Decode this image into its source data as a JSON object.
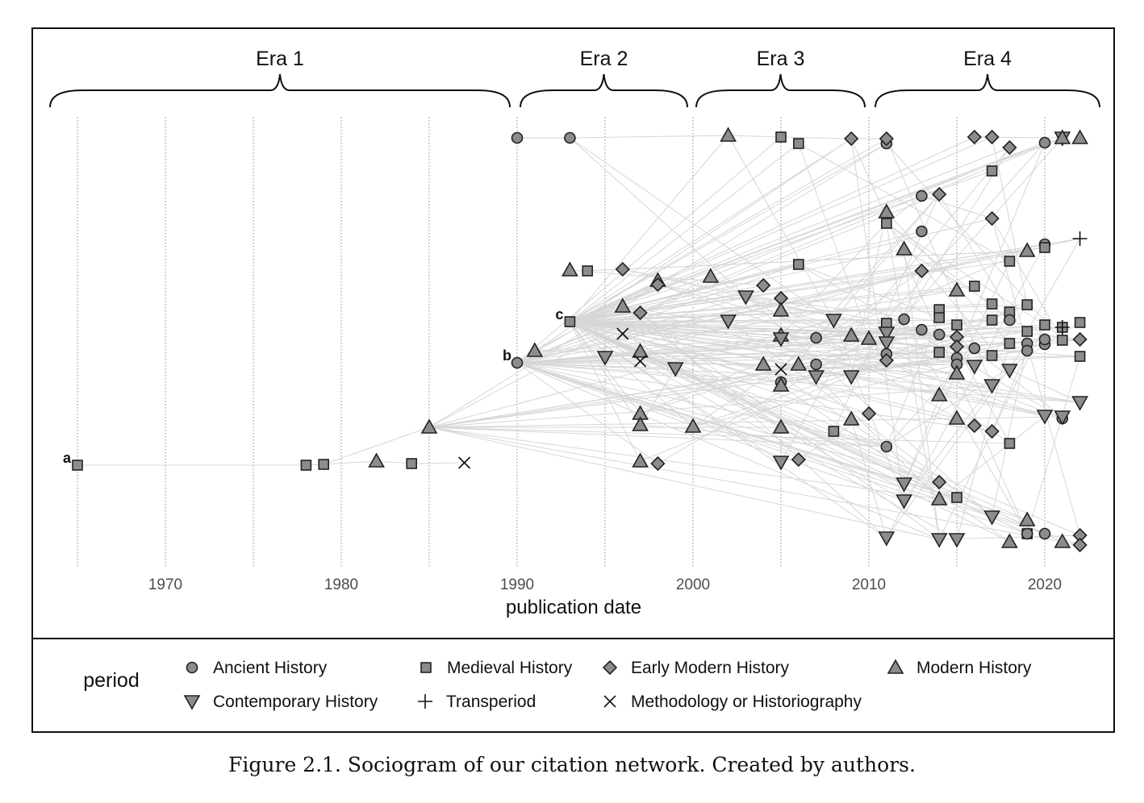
{
  "chart_data": {
    "type": "scatter",
    "subtype": "sociogram",
    "xlabel": "publication date",
    "xlim": [
      1963.5,
      2023.5
    ],
    "xticks": [
      1970,
      1980,
      1990,
      2000,
      2010,
      2020
    ],
    "eras": [
      {
        "label": "Era 1",
        "from": 1965,
        "to": 1990
      },
      {
        "label": "Era 2",
        "from": 1990,
        "to": 2000
      },
      {
        "label": "Era 3",
        "from": 2000,
        "to": 2010
      },
      {
        "label": "Era 4",
        "from": 2010,
        "to": 2022
      }
    ],
    "legend_title": "period",
    "legend_position": "bottom",
    "periods": [
      {
        "code": "A",
        "label": "Ancient History",
        "marker": "circle"
      },
      {
        "code": "M",
        "label": "Medieval History",
        "marker": "square"
      },
      {
        "code": "E",
        "label": "Early Modern History",
        "marker": "diamond"
      },
      {
        "code": "Mo",
        "label": "Modern History",
        "marker": "triangle-up"
      },
      {
        "code": "C",
        "label": "Contemporary History",
        "marker": "triangle-down"
      },
      {
        "code": "T",
        "label": "Transperiod",
        "marker": "plus"
      },
      {
        "code": "H",
        "label": "Methodology or Historiography",
        "marker": "x"
      }
    ],
    "node_labels": {
      "0": "a",
      "9": "b",
      "10": "c"
    },
    "nodes": [
      [
        1965,
        "M"
      ],
      [
        1978,
        "M"
      ],
      [
        1979,
        "M"
      ],
      [
        1982,
        "Mo"
      ],
      [
        1984,
        "M"
      ],
      [
        1985,
        "Mo"
      ],
      [
        1987,
        "H"
      ],
      [
        1990,
        "A"
      ],
      [
        1993,
        "A"
      ],
      [
        1990,
        "A"
      ],
      [
        1993,
        "M"
      ],
      [
        1991,
        "Mo"
      ],
      [
        1993,
        "Mo"
      ],
      [
        1994,
        "M"
      ],
      [
        1995,
        "C"
      ],
      [
        1996,
        "E"
      ],
      [
        1996,
        "H"
      ],
      [
        1996,
        "Mo"
      ],
      [
        1997,
        "E"
      ],
      [
        1998,
        "Mo"
      ],
      [
        1998,
        "E"
      ],
      [
        1997,
        "Mo"
      ],
      [
        1997,
        "H"
      ],
      [
        1999,
        "C"
      ],
      [
        1997,
        "Mo"
      ],
      [
        1997,
        "Mo"
      ],
      [
        2000,
        "Mo"
      ],
      [
        1997,
        "Mo"
      ],
      [
        1998,
        "E"
      ],
      [
        2002,
        "Mo"
      ],
      [
        2005,
        "M"
      ],
      [
        2006,
        "M"
      ],
      [
        2009,
        "E"
      ],
      [
        2001,
        "Mo"
      ],
      [
        2003,
        "C"
      ],
      [
        2002,
        "C"
      ],
      [
        2004,
        "E"
      ],
      [
        2005,
        "E"
      ],
      [
        2005,
        "Mo"
      ],
      [
        2005,
        "Mo"
      ],
      [
        2005,
        "C"
      ],
      [
        2006,
        "M"
      ],
      [
        2007,
        "A"
      ],
      [
        2004,
        "Mo"
      ],
      [
        2005,
        "H"
      ],
      [
        2006,
        "Mo"
      ],
      [
        2007,
        "A"
      ],
      [
        2007,
        "C"
      ],
      [
        2005,
        "A"
      ],
      [
        2005,
        "Mo"
      ],
      [
        2005,
        "Mo"
      ],
      [
        2005,
        "C"
      ],
      [
        2006,
        "E"
      ],
      [
        2008,
        "C"
      ],
      [
        2009,
        "Mo"
      ],
      [
        2009,
        "C"
      ],
      [
        2008,
        "M"
      ],
      [
        2009,
        "Mo"
      ],
      [
        2010,
        "E"
      ],
      [
        2010,
        "Mo"
      ],
      [
        2011,
        "A"
      ],
      [
        2011,
        "E"
      ],
      [
        2016,
        "E"
      ],
      [
        2017,
        "E"
      ],
      [
        2018,
        "E"
      ],
      [
        2020,
        "A"
      ],
      [
        2021,
        "C"
      ],
      [
        2021,
        "Mo"
      ],
      [
        2022,
        "Mo"
      ],
      [
        2017,
        "M"
      ],
      [
        2013,
        "A"
      ],
      [
        2014,
        "E"
      ],
      [
        2011,
        "Mo"
      ],
      [
        2011,
        "M"
      ],
      [
        2013,
        "A"
      ],
      [
        2017,
        "E"
      ],
      [
        2022,
        "T"
      ],
      [
        2020,
        "A"
      ],
      [
        2020,
        "M"
      ],
      [
        2019,
        "Mo"
      ],
      [
        2018,
        "M"
      ],
      [
        2012,
        "Mo"
      ],
      [
        2013,
        "E"
      ],
      [
        2015,
        "Mo"
      ],
      [
        2016,
        "M"
      ],
      [
        2017,
        "M"
      ],
      [
        2019,
        "M"
      ],
      [
        2014,
        "M"
      ],
      [
        2014,
        "M"
      ],
      [
        2018,
        "M"
      ],
      [
        2018,
        "A"
      ],
      [
        2012,
        "A"
      ],
      [
        2011,
        "M"
      ],
      [
        2015,
        "M"
      ],
      [
        2011,
        "C"
      ],
      [
        2013,
        "A"
      ],
      [
        2020,
        "M"
      ],
      [
        2021,
        "M"
      ],
      [
        2021,
        "T"
      ],
      [
        2022,
        "M"
      ],
      [
        2017,
        "M"
      ],
      [
        2015,
        "E"
      ],
      [
        2014,
        "A"
      ],
      [
        2019,
        "M"
      ],
      [
        2011,
        "C"
      ],
      [
        2020,
        "A"
      ],
      [
        2019,
        "A"
      ],
      [
        2022,
        "E"
      ],
      [
        2021,
        "M"
      ],
      [
        2018,
        "M"
      ],
      [
        2015,
        "E"
      ],
      [
        2011,
        "A"
      ],
      [
        2016,
        "A"
      ],
      [
        2014,
        "M"
      ],
      [
        2020,
        "A"
      ],
      [
        2019,
        "A"
      ],
      [
        2022,
        "M"
      ],
      [
        2011,
        "E"
      ],
      [
        2015,
        "A"
      ],
      [
        2017,
        "M"
      ],
      [
        2015,
        "A"
      ],
      [
        2016,
        "C"
      ],
      [
        2018,
        "C"
      ],
      [
        2015,
        "Mo"
      ],
      [
        2017,
        "C"
      ],
      [
        2014,
        "Mo"
      ],
      [
        2022,
        "C"
      ],
      [
        2020,
        "C"
      ],
      [
        2021,
        "A"
      ],
      [
        2021,
        "C"
      ],
      [
        2015,
        "Mo"
      ],
      [
        2016,
        "E"
      ],
      [
        2017,
        "E"
      ],
      [
        2018,
        "M"
      ],
      [
        2011,
        "A"
      ],
      [
        2012,
        "C"
      ],
      [
        2012,
        "C"
      ],
      [
        2014,
        "E"
      ],
      [
        2014,
        "Mo"
      ],
      [
        2015,
        "M"
      ],
      [
        2017,
        "C"
      ],
      [
        2019,
        "Mo"
      ],
      [
        2019,
        "M"
      ],
      [
        2019,
        "A"
      ],
      [
        2020,
        "A"
      ],
      [
        2011,
        "C"
      ],
      [
        2014,
        "C"
      ],
      [
        2015,
        "C"
      ],
      [
        2018,
        "Mo"
      ],
      [
        2021,
        "Mo"
      ],
      [
        2022,
        "E"
      ],
      [
        2022,
        "E"
      ]
    ]
  },
  "caption": "Figure 2.1. Sociogram of our citation network. Created by authors.",
  "colors": {
    "marker_fill": "#8c8c8c",
    "marker_stroke": "#222222",
    "edge": "#d6d6d6",
    "grid": "#8a8a8a"
  }
}
